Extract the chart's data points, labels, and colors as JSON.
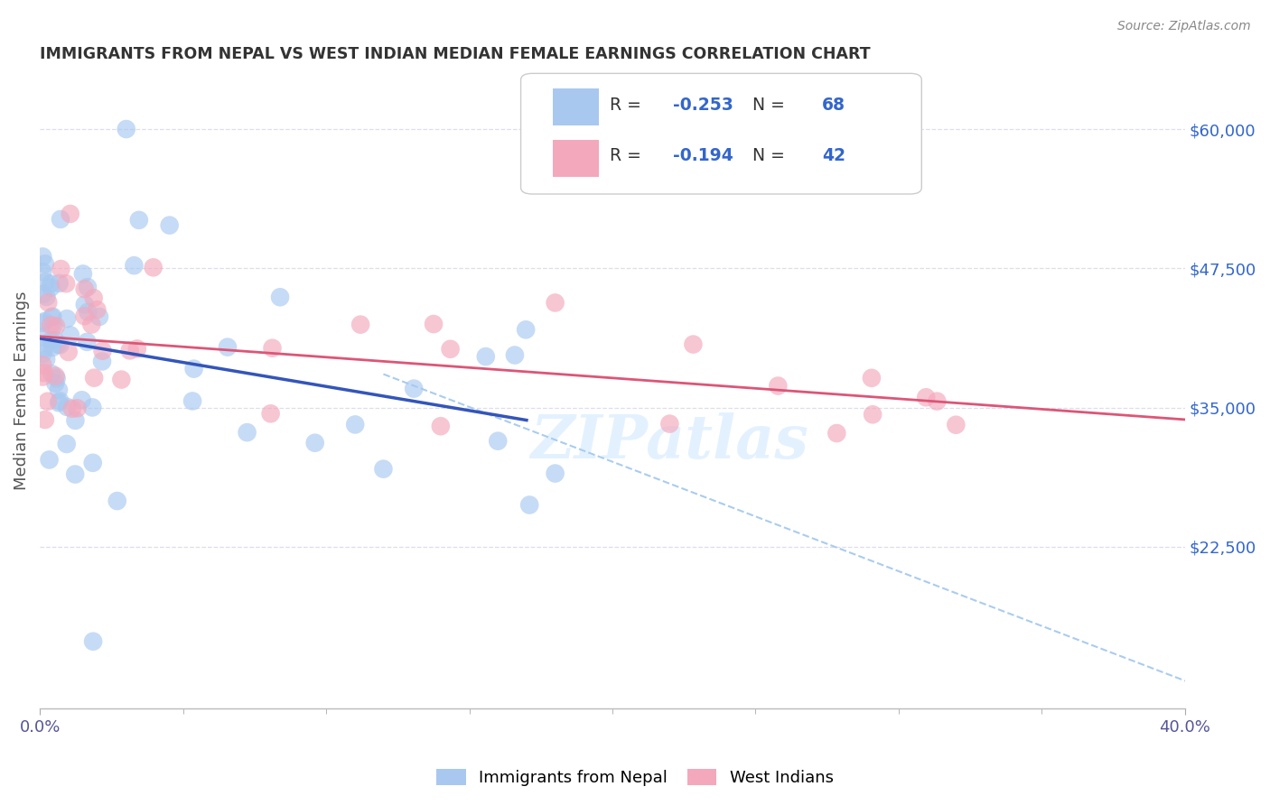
{
  "title": "IMMIGRANTS FROM NEPAL VS WEST INDIAN MEDIAN FEMALE EARNINGS CORRELATION CHART",
  "source": "Source: ZipAtlas.com",
  "ylabel": "Median Female Earnings",
  "xlim": [
    0.0,
    0.4
  ],
  "ylim": [
    8000,
    65000
  ],
  "yticks": [
    22500,
    35000,
    47500,
    60000
  ],
  "ytick_labels": [
    "$22,500",
    "$35,000",
    "$47,500",
    "$60,000"
  ],
  "xtick_left_label": "0.0%",
  "xtick_right_label": "40.0%",
  "nepal_R": "-0.253",
  "nepal_N": "68",
  "westindian_R": "-0.194",
  "westindian_N": "42",
  "nepal_color": "#A8C8F0",
  "westindian_color": "#F4A8BC",
  "nepal_line_color": "#3355BB",
  "westindian_line_color": "#DD5577",
  "dashed_line_color": "#AACCEE",
  "background_color": "#FFFFFF",
  "grid_color": "#DDDDEE",
  "legend_text_color": "#3366CC",
  "title_color": "#333333",
  "source_color": "#888888",
  "ylabel_color": "#555555"
}
